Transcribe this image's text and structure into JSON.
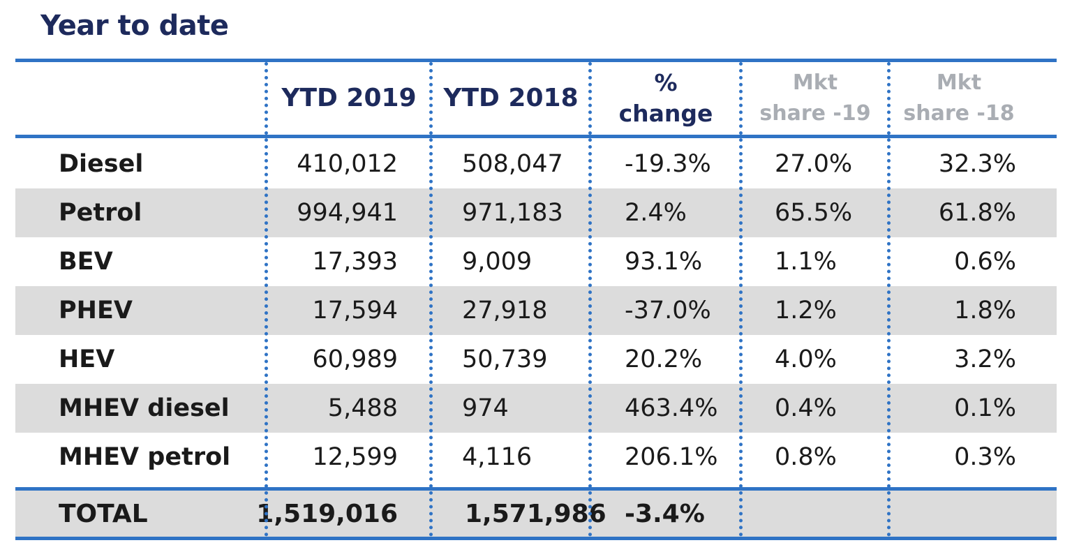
{
  "title": "Year to date",
  "header": {
    "ytd2019": "YTD 2019",
    "ytd2018": "YTD 2018",
    "pct_line1": "%",
    "pct_line2": "change",
    "mkt19_line1": "Mkt",
    "mkt19_line2": "share -19",
    "mkt18_line1": "Mkt",
    "mkt18_line2": "share -18"
  },
  "rows": [
    {
      "label": "Diesel",
      "ytd2019": "410,012",
      "ytd2018": "508,047",
      "pct": "-19.3%",
      "mkt19": "27.0%",
      "mkt18": "32.3%"
    },
    {
      "label": "Petrol",
      "ytd2019": "994,941",
      "ytd2018": "971,183",
      "pct": "2.4%",
      "mkt19": "65.5%",
      "mkt18": "61.8%"
    },
    {
      "label": "BEV",
      "ytd2019": "17,393",
      "ytd2018": "9,009",
      "pct": "93.1%",
      "mkt19": "1.1%",
      "mkt18": "0.6%"
    },
    {
      "label": "PHEV",
      "ytd2019": "17,594",
      "ytd2018": "27,918",
      "pct": "-37.0%",
      "mkt19": "1.2%",
      "mkt18": "1.8%"
    },
    {
      "label": "HEV",
      "ytd2019": "60,989",
      "ytd2018": "50,739",
      "pct": "20.2%",
      "mkt19": "4.0%",
      "mkt18": "3.2%"
    },
    {
      "label": "MHEV diesel",
      "ytd2019": "5,488",
      "ytd2018": "974",
      "pct": "463.4%",
      "mkt19": "0.4%",
      "mkt18": "0.1%"
    },
    {
      "label": "MHEV petrol",
      "ytd2019": "12,599",
      "ytd2018": "4,116",
      "pct": "206.1%",
      "mkt19": "0.8%",
      "mkt18": "0.3%"
    }
  ],
  "total": {
    "label": "TOTAL",
    "ytd2019": "1,519,016",
    "ytd2018": "1,571,986",
    "pct": "-3.4%"
  },
  "colors": {
    "rule": "#2f73c5",
    "title": "#1d2a5c",
    "header_muted": "#a9adb3",
    "row_shade": "#dcdcdc"
  }
}
